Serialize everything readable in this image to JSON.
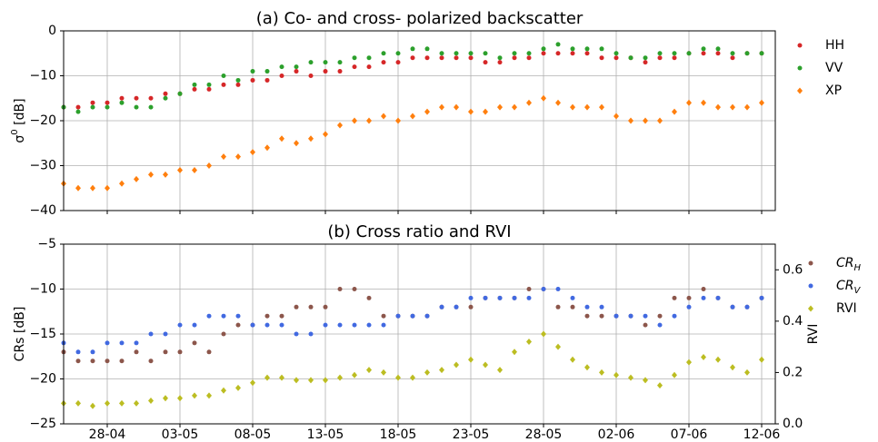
{
  "chart_data": [
    {
      "type": "scatter",
      "title": "(a) Co- and cross- polarized backscatter",
      "ylabel": "σ^0 [dB]",
      "ylim": [
        -40,
        0
      ],
      "yticks": [
        {
          "value": -40,
          "label": "−40"
        },
        {
          "value": -30,
          "label": "−30"
        },
        {
          "value": -20,
          "label": "−20"
        },
        {
          "value": -10,
          "label": "−10"
        },
        0
      ],
      "grid": true,
      "series": [
        {
          "name": "HH",
          "color": "#d62728",
          "marker": "circle",
          "values": [
            -17,
            -17,
            -16,
            -16,
            -15,
            -15,
            -15,
            -14,
            -14,
            -13,
            -13,
            -12,
            -12,
            -11,
            -11,
            -10,
            -9,
            -10,
            -9,
            -9,
            -8,
            -8,
            -7,
            -7,
            -6,
            -6,
            -6,
            -6,
            -6,
            -7,
            -7,
            -6,
            -6,
            -5,
            -5,
            -5,
            -5,
            -6,
            -6,
            -6,
            -7,
            -6,
            -6,
            -5,
            -5,
            -5,
            -6,
            -5,
            -5
          ]
        },
        {
          "name": "VV",
          "color": "#2ca02c",
          "marker": "circle",
          "values": [
            -17,
            -18,
            -17,
            -17,
            -16,
            -17,
            -17,
            -15,
            -14,
            -12,
            -12,
            -10,
            -11,
            -9,
            -9,
            -8,
            -8,
            -7,
            -7,
            -7,
            -6,
            -6,
            -5,
            -5,
            -4,
            -4,
            -5,
            -5,
            -5,
            -5,
            -6,
            -5,
            -5,
            -4,
            -3,
            -4,
            -4,
            -4,
            -5,
            -6,
            -6,
            -5,
            -5,
            -5,
            -4,
            -4,
            -5,
            -5,
            -5
          ]
        },
        {
          "name": "XP",
          "color": "#ff7f0e",
          "marker": "diamond",
          "values": [
            -34,
            -35,
            -35,
            -35,
            -34,
            -33,
            -32,
            -32,
            -31,
            -31,
            -30,
            -28,
            -28,
            -27,
            -26,
            -24,
            -25,
            -24,
            -23,
            -21,
            -20,
            -20,
            -19,
            -20,
            -19,
            -18,
            -17,
            -17,
            -18,
            -18,
            -17,
            -17,
            -16,
            -15,
            -16,
            -17,
            -17,
            -17,
            -19,
            -20,
            -20,
            -20,
            -18,
            -16,
            -16,
            -17,
            -17,
            -17,
            -16
          ]
        }
      ]
    },
    {
      "type": "scatter",
      "title": "(b) Cross ratio and RVI",
      "ylabel": "CRs [dB]",
      "y2label": "RVI",
      "categories": [
        null,
        null,
        null,
        "28-04",
        null,
        null,
        null,
        null,
        "03-05",
        null,
        null,
        null,
        null,
        "08-05",
        null,
        null,
        null,
        null,
        "13-05",
        null,
        null,
        null,
        null,
        "18-05",
        null,
        null,
        null,
        null,
        "23-05",
        null,
        null,
        null,
        null,
        "28-05",
        null,
        null,
        null,
        null,
        "02-06",
        null,
        null,
        null,
        null,
        "07-06",
        null,
        null,
        null,
        null,
        "12-06"
      ],
      "ylim": [
        -25,
        -5
      ],
      "yticks": [
        {
          "value": -25,
          "label": "−25"
        },
        {
          "value": -20,
          "label": "−20"
        },
        {
          "value": -15,
          "label": "−15"
        },
        {
          "value": -10,
          "label": "−10"
        },
        {
          "value": -5,
          "label": "−5"
        }
      ],
      "y2lim": [
        0,
        0.7
      ],
      "y2ticks": [
        {
          "value": 0,
          "label": "0.0"
        },
        0.2,
        0.4,
        0.6
      ],
      "grid": true,
      "series": [
        {
          "name": "CR_H",
          "color": "#8c564b",
          "marker": "circle",
          "values": [
            -17,
            -18,
            -18,
            -18,
            -18,
            -17,
            -18,
            -17,
            -17,
            -16,
            -17,
            -15,
            -14,
            -14,
            -13,
            -13,
            -12,
            -12,
            -12,
            -10,
            -10,
            -11,
            -13,
            -13,
            -13,
            -13,
            -12,
            -12,
            -12,
            -11,
            -11,
            -11,
            -10,
            -10,
            -12,
            -12,
            -13,
            -13,
            -13,
            -13,
            -14,
            -13,
            -11,
            -11,
            -10,
            -11,
            -12,
            -12,
            -11
          ]
        },
        {
          "name": "CR_V",
          "color": "#4169e1",
          "marker": "circle",
          "values": [
            -16,
            -17,
            -17,
            -16,
            -16,
            -16,
            -15,
            -15,
            -14,
            -14,
            -13,
            -13,
            -13,
            -14,
            -14,
            -14,
            -15,
            -15,
            -14,
            -14,
            -14,
            -14,
            -14,
            -13,
            -13,
            -13,
            -12,
            -12,
            -11,
            -11,
            -11,
            -11,
            -11,
            -10,
            -10,
            -11,
            -12,
            -12,
            -13,
            -13,
            -13,
            -14,
            -13,
            -12,
            -11,
            -11,
            -12,
            -12,
            -11
          ]
        },
        {
          "name": "RVI",
          "color": "#bcbd22",
          "marker": "diamond",
          "axis": "y2",
          "values": [
            0.08,
            0.08,
            0.07,
            0.08,
            0.08,
            0.08,
            0.09,
            0.1,
            0.1,
            0.11,
            0.11,
            0.13,
            0.14,
            0.16,
            0.18,
            0.18,
            0.17,
            0.17,
            0.17,
            0.18,
            0.19,
            0.21,
            0.2,
            0.18,
            0.18,
            0.2,
            0.21,
            0.23,
            0.25,
            0.23,
            0.21,
            0.28,
            0.32,
            0.35,
            0.3,
            0.25,
            0.22,
            0.2,
            0.19,
            0.18,
            0.17,
            0.15,
            0.19,
            0.24,
            0.26,
            0.25,
            0.22,
            0.2,
            0.25
          ]
        }
      ]
    }
  ]
}
